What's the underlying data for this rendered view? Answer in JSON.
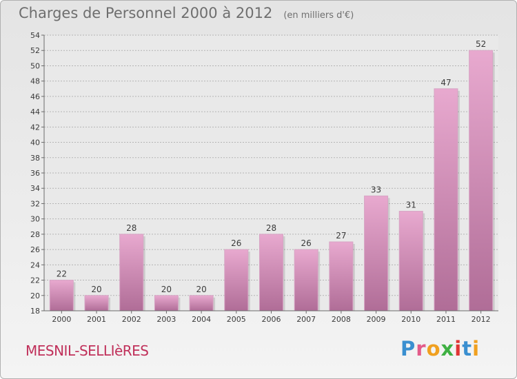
{
  "header": {
    "title": "Charges de Personnel 2000 à 2012",
    "unit": "(en milliers d'€)"
  },
  "footer": {
    "place": "MESNIL-SELLIèRES",
    "brand_letters": [
      "P",
      "r",
      "o",
      "x",
      "i",
      "t",
      "i"
    ],
    "brand_colors": [
      "#3a8fd0",
      "#e35b8a",
      "#f0a020",
      "#3fb043",
      "#e03535",
      "#3a8fd0",
      "#f0a020"
    ]
  },
  "colors": {
    "bar_light": "#e8a9cf",
    "bar_dark": "#b06d97",
    "grid": "#b4b4b4",
    "axis": "#6a6a6a",
    "label": "#3a3a3a"
  },
  "chart_data": {
    "type": "bar",
    "categories": [
      "2000",
      "2001",
      "2002",
      "2003",
      "2004",
      "2005",
      "2006",
      "2007",
      "2008",
      "2009",
      "2010",
      "2011",
      "2012"
    ],
    "values": [
      22,
      20,
      28,
      20,
      20,
      26,
      28,
      26,
      27,
      33,
      31,
      47,
      52
    ],
    "ylim": [
      18,
      54
    ],
    "yticks": [
      18,
      20,
      22,
      24,
      26,
      28,
      30,
      32,
      34,
      36,
      38,
      40,
      42,
      44,
      46,
      48,
      50,
      52,
      54
    ],
    "grid": true,
    "data_labels": true
  }
}
